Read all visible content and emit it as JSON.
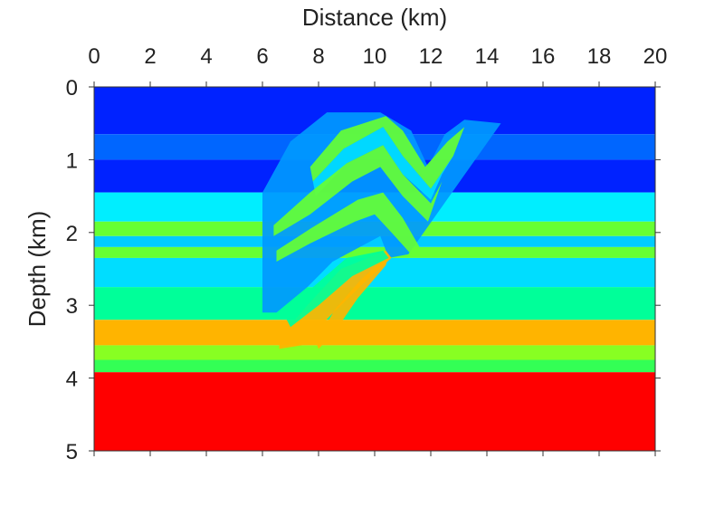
{
  "chart_data": {
    "type": "heatmap",
    "title": "",
    "xlabel": "Distance (km)",
    "ylabel": "Depth (km)",
    "x_axis_position": "top",
    "y_axis_reversed": true,
    "xlim": [
      0,
      20
    ],
    "ylim": [
      0,
      5
    ],
    "xticks": [
      "0",
      "2",
      "4",
      "6",
      "8",
      "10",
      "12",
      "14",
      "16",
      "18",
      "20"
    ],
    "yticks": [
      "0",
      "1",
      "2",
      "3",
      "4",
      "5"
    ],
    "grid": false,
    "legend": "none",
    "layers": [
      {
        "top": 0.0,
        "bottom": 0.65,
        "color": "#0022ff"
      },
      {
        "top": 0.65,
        "bottom": 1.0,
        "color": "#0066ff"
      },
      {
        "top": 1.0,
        "bottom": 1.45,
        "color": "#0022ff"
      },
      {
        "top": 1.45,
        "bottom": 1.85,
        "color": "#00eeff"
      },
      {
        "top": 1.85,
        "bottom": 2.05,
        "color": "#66ff33"
      },
      {
        "top": 2.05,
        "bottom": 2.2,
        "color": "#00ccff"
      },
      {
        "top": 2.2,
        "bottom": 2.35,
        "color": "#66ff33"
      },
      {
        "top": 2.35,
        "bottom": 2.75,
        "color": "#00ddff"
      },
      {
        "top": 2.75,
        "bottom": 3.2,
        "color": "#00ff99"
      },
      {
        "top": 3.2,
        "bottom": 3.55,
        "color": "#ffb400"
      },
      {
        "top": 3.55,
        "bottom": 3.75,
        "color": "#88ff22"
      },
      {
        "top": 3.75,
        "bottom": 3.92,
        "color": "#33ff55"
      },
      {
        "top": 3.92,
        "bottom": 5.0,
        "color": "#ff0000"
      }
    ],
    "fold_bands": [
      {
        "color": "#0099ff",
        "points": [
          [
            6.0,
            1.45
          ],
          [
            7.0,
            0.75
          ],
          [
            8.3,
            0.35
          ],
          [
            10.2,
            0.35
          ],
          [
            11.3,
            0.6
          ],
          [
            11.9,
            1.1
          ],
          [
            12.5,
            0.65
          ],
          [
            13.2,
            0.45
          ],
          [
            14.5,
            0.5
          ],
          [
            11.2,
            2.3
          ],
          [
            10.5,
            2.35
          ],
          [
            10.2,
            2.05
          ],
          [
            8.5,
            2.4
          ],
          [
            7.6,
            2.75
          ],
          [
            6.5,
            3.1
          ],
          [
            6.0,
            3.1
          ]
        ]
      },
      {
        "color": "#66ff33",
        "points": [
          [
            7.7,
            1.1
          ],
          [
            8.8,
            0.6
          ],
          [
            10.4,
            0.4
          ],
          [
            11.0,
            0.6
          ],
          [
            11.8,
            1.1
          ],
          [
            12.6,
            0.75
          ],
          [
            13.2,
            0.55
          ],
          [
            12.8,
            0.95
          ],
          [
            12.0,
            1.4
          ],
          [
            11.0,
            0.95
          ],
          [
            10.3,
            0.55
          ],
          [
            8.9,
            0.85
          ],
          [
            7.8,
            1.3
          ]
        ]
      },
      {
        "color": "#00ddff",
        "points": [
          [
            7.8,
            1.3
          ],
          [
            8.9,
            0.85
          ],
          [
            10.3,
            0.55
          ],
          [
            11.0,
            0.95
          ],
          [
            12.0,
            1.4
          ],
          [
            12.8,
            0.95
          ],
          [
            12.4,
            1.2
          ],
          [
            12.0,
            1.55
          ],
          [
            11.0,
            1.2
          ],
          [
            10.3,
            0.8
          ],
          [
            9.0,
            1.05
          ],
          [
            7.9,
            1.5
          ]
        ]
      },
      {
        "color": "#66ff33",
        "points": [
          [
            6.4,
            1.9
          ],
          [
            7.7,
            1.45
          ],
          [
            9.0,
            1.05
          ],
          [
            10.3,
            0.8
          ],
          [
            11.0,
            1.2
          ],
          [
            12.0,
            1.6
          ],
          [
            12.4,
            1.3
          ],
          [
            11.9,
            1.85
          ],
          [
            11.0,
            1.5
          ],
          [
            10.2,
            1.1
          ],
          [
            9.2,
            1.3
          ],
          [
            7.7,
            1.75
          ],
          [
            6.4,
            2.05
          ]
        ]
      },
      {
        "color": "#66ff33",
        "points": [
          [
            6.5,
            2.25
          ],
          [
            7.7,
            1.95
          ],
          [
            9.4,
            1.55
          ],
          [
            10.3,
            1.45
          ],
          [
            11.0,
            1.8
          ],
          [
            11.6,
            2.2
          ],
          [
            11.3,
            2.3
          ],
          [
            10.6,
            2.0
          ],
          [
            10.0,
            1.75
          ],
          [
            9.3,
            1.85
          ],
          [
            7.7,
            2.15
          ],
          [
            6.5,
            2.4
          ]
        ]
      },
      {
        "color": "#ffb400",
        "points": [
          [
            6.6,
            3.45
          ],
          [
            7.6,
            3.0
          ],
          [
            8.8,
            2.5
          ],
          [
            10.4,
            2.25
          ],
          [
            10.6,
            2.35
          ],
          [
            9.6,
            2.7
          ],
          [
            8.4,
            3.15
          ],
          [
            7.4,
            3.55
          ],
          [
            6.6,
            3.6
          ]
        ]
      },
      {
        "color": "#ffb400",
        "points": [
          [
            7.9,
            3.5
          ],
          [
            8.6,
            3.05
          ],
          [
            9.5,
            2.65
          ],
          [
            10.5,
            2.3
          ],
          [
            10.4,
            2.45
          ],
          [
            9.4,
            2.9
          ],
          [
            8.6,
            3.35
          ],
          [
            8.0,
            3.6
          ]
        ]
      },
      {
        "color": "#00ff99",
        "points": [
          [
            6.8,
            3.15
          ],
          [
            7.8,
            2.75
          ],
          [
            9.0,
            2.35
          ],
          [
            10.3,
            2.25
          ],
          [
            10.5,
            2.35
          ],
          [
            9.2,
            2.6
          ],
          [
            8.0,
            3.0
          ],
          [
            7.0,
            3.3
          ]
        ]
      }
    ]
  }
}
